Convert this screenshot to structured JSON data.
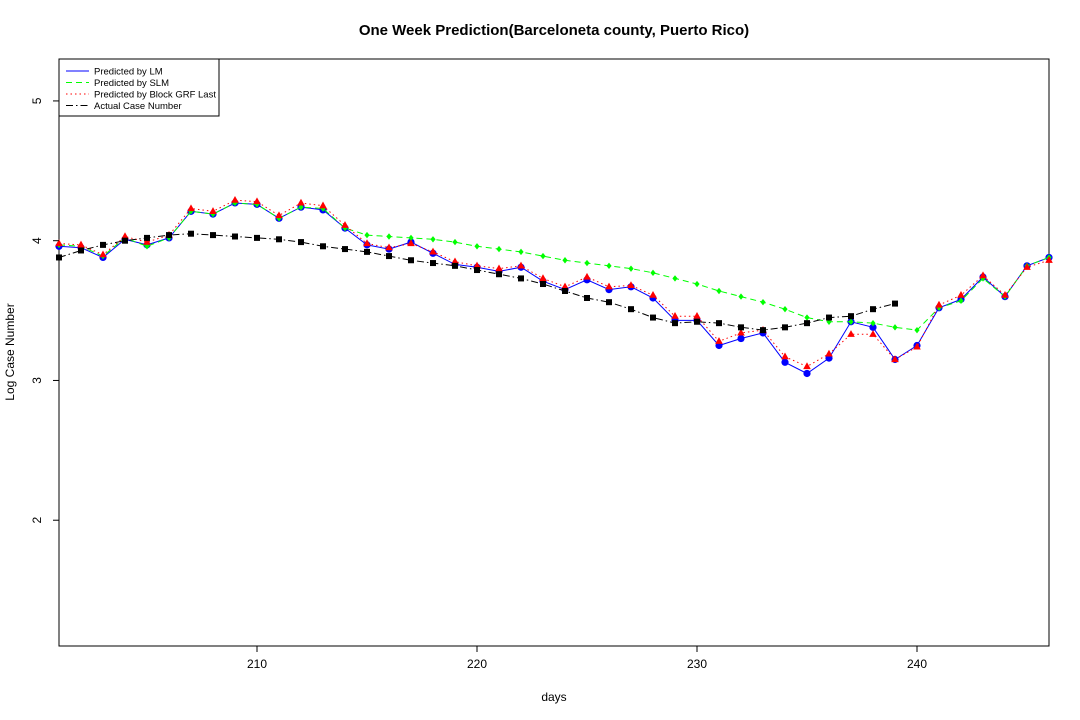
{
  "chart_data": {
    "type": "line",
    "title": "One Week Prediction(Barceloneta county, Puerto Rico)",
    "xlabel": "days",
    "ylabel": "Log Case Number",
    "xlim": [
      201,
      246
    ],
    "ylim": [
      1.1,
      5.3
    ],
    "x_ticks": [
      210,
      220,
      230,
      240
    ],
    "y_ticks": [
      2,
      3,
      4,
      5
    ],
    "legend_position": "top-left",
    "grid": false,
    "series": [
      {
        "name": "Predicted by LM",
        "color": "#0000ff",
        "line_style": "solid",
        "marker": "circle",
        "x": [
          201,
          202,
          203,
          204,
          205,
          206,
          207,
          208,
          209,
          210,
          211,
          212,
          213,
          214,
          215,
          216,
          217,
          218,
          219,
          220,
          221,
          222,
          223,
          224,
          225,
          226,
          227,
          228,
          229,
          230,
          231,
          232,
          233,
          234,
          235,
          236,
          237,
          238,
          239,
          240,
          241,
          242,
          243,
          244,
          245,
          246
        ],
        "values": [
          3.96,
          3.95,
          3.88,
          4.01,
          3.97,
          4.02,
          4.21,
          4.19,
          4.27,
          4.26,
          4.16,
          4.24,
          4.22,
          4.09,
          3.97,
          3.94,
          3.99,
          3.91,
          3.83,
          3.81,
          3.78,
          3.81,
          3.71,
          3.65,
          3.72,
          3.65,
          3.67,
          3.59,
          3.43,
          3.43,
          3.25,
          3.3,
          3.34,
          3.13,
          3.05,
          3.16,
          3.42,
          3.38,
          3.15,
          3.25,
          3.52,
          3.58,
          3.74,
          3.6,
          3.82,
          3.88
        ]
      },
      {
        "name": "Predicted by SLM",
        "color": "#00ff00",
        "line_style": "dashed",
        "marker": "diamond",
        "x": [
          201,
          202,
          203,
          204,
          205,
          206,
          207,
          208,
          209,
          210,
          211,
          212,
          213,
          214,
          215,
          216,
          217,
          218,
          219,
          220,
          221,
          222,
          223,
          224,
          225,
          226,
          227,
          228,
          229,
          230,
          231,
          232,
          233,
          234,
          235,
          236,
          237,
          238,
          239,
          240,
          241,
          242,
          243,
          244,
          245,
          246
        ],
        "values": [
          3.97,
          3.96,
          3.89,
          4.02,
          3.96,
          4.02,
          4.21,
          4.19,
          4.27,
          4.26,
          4.16,
          4.24,
          4.23,
          4.09,
          4.04,
          4.03,
          4.02,
          4.01,
          3.99,
          3.96,
          3.94,
          3.92,
          3.89,
          3.86,
          3.84,
          3.82,
          3.8,
          3.77,
          3.73,
          3.69,
          3.64,
          3.6,
          3.56,
          3.51,
          3.45,
          3.42,
          3.42,
          3.41,
          3.38,
          3.36,
          3.52,
          3.57,
          3.73,
          3.6,
          3.82,
          3.88
        ]
      },
      {
        "name": "Predicted by Block GRF Last",
        "color": "#ff0000",
        "line_style": "dotted",
        "marker": "triangle",
        "x": [
          201,
          202,
          203,
          204,
          205,
          206,
          207,
          208,
          209,
          210,
          211,
          212,
          213,
          214,
          215,
          216,
          217,
          218,
          219,
          220,
          221,
          222,
          223,
          224,
          225,
          226,
          227,
          228,
          229,
          230,
          231,
          232,
          233,
          234,
          235,
          236,
          237,
          238,
          239,
          240,
          241,
          242,
          243,
          244,
          245,
          246
        ],
        "values": [
          3.98,
          3.97,
          3.9,
          4.03,
          3.99,
          4.04,
          4.23,
          4.21,
          4.29,
          4.28,
          4.18,
          4.27,
          4.25,
          4.11,
          3.98,
          3.95,
          3.98,
          3.92,
          3.85,
          3.82,
          3.8,
          3.82,
          3.73,
          3.67,
          3.74,
          3.67,
          3.68,
          3.61,
          3.46,
          3.46,
          3.28,
          3.34,
          3.36,
          3.17,
          3.1,
          3.19,
          3.33,
          3.33,
          3.15,
          3.24,
          3.54,
          3.61,
          3.75,
          3.61,
          3.81,
          3.86
        ]
      },
      {
        "name": "Actual Case Number",
        "color": "#000000",
        "line_style": "dashdot",
        "marker": "square",
        "x": [
          201,
          202,
          203,
          204,
          205,
          206,
          207,
          208,
          209,
          210,
          211,
          212,
          213,
          214,
          215,
          216,
          217,
          218,
          219,
          220,
          221,
          222,
          223,
          224,
          225,
          226,
          227,
          228,
          229,
          230,
          231,
          232,
          233,
          234,
          235,
          236,
          237,
          238,
          239
        ],
        "values": [
          3.88,
          3.93,
          3.97,
          4.0,
          4.02,
          4.04,
          4.05,
          4.04,
          4.03,
          4.02,
          4.01,
          3.99,
          3.96,
          3.94,
          3.92,
          3.89,
          3.86,
          3.84,
          3.82,
          3.79,
          3.76,
          3.73,
          3.69,
          3.64,
          3.59,
          3.56,
          3.51,
          3.45,
          3.41,
          3.42,
          3.41,
          3.38,
          3.36,
          3.38,
          3.41,
          3.45,
          3.46,
          3.51,
          3.55
        ]
      }
    ]
  }
}
